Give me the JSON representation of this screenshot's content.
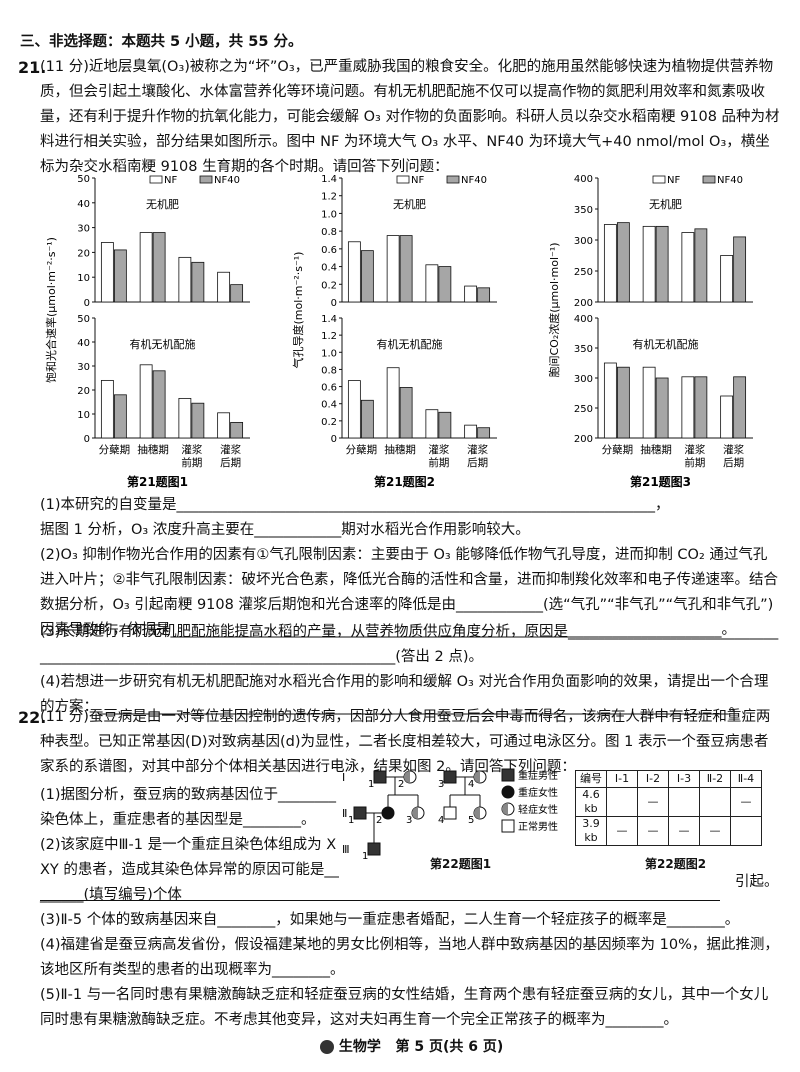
{
  "section_heading": "三、非选择题：本题共 5 小题，共 55 分。",
  "q21": {
    "number": "21.",
    "intro": "(11 分)近地层臭氧(O₃)被称之为“坏”O₃，已严重威胁我国的粮食安全。化肥的施用虽然能够快速为植物提供营养物质，但会引起土壤酸化、水体富营养化等环境问题。有机无机肥配施不仅可以提高作物的氮肥利用效率和氮素吸收量，还有利于提升作物的抗氧化能力，可能会缓解 O₃ 对作物的负面影响。科研人员以杂交水稻南粳 9108 品种为材料进行相关实验，部分结果如图所示。图中 NF 为环境大气 O₃ 水平、NF40 为环境大气+40 nmol/mol O₃，横坐标为杂交水稻南粳 9108 生育期的各个时期。请回答下列问题：",
    "questions": [
      "(1)本研究的自变量是__________________________________________________________________，",
      "据图 1 分析，O₃ 浓度升高主要在____________期对水稻光合作用影响较大。",
      "(2)O₃ 抑制作物光合作用的因素有①气孔限制因素：主要由于 O₃ 能够降低作物气孔导度，进而抑制 CO₂ 通过气孔进入叶片；②非气孔限制因素：破坏光合色素，降低光合酶的活性和含量，进而抑制羧化效率和电子传递速率。结合数据分析，O₃ 引起南粳 9108 灌浆后期饱和光合速率的降低是由____________(选“气孔”“非气孔”“气孔和非气孔”)因素导致的，依据是____________________________________________________________________________。",
      "(3)长期进行有机无机肥配施能提高水稻的产量，从营养物质供应角度分析，原因是______________________________________________________________________________(答出 2 点)。",
      "(4)若想进一步研究有机无机肥配施对水稻光合作用的影响和缓解 O₃ 对光合作用负面影响的效果，请提出一个合理的方案：_______________________________________________________________________________________。"
    ]
  },
  "chart_data": [
    {
      "type": "bar",
      "caption": "第21题图1",
      "y_label": "饱和光合速率(μmol·m⁻²·s⁻¹)",
      "ylim": [
        0,
        50
      ],
      "yticks": [
        0,
        10,
        20,
        30,
        40,
        50
      ],
      "categories": [
        "分蘖期",
        "抽穗期",
        "灌浆前期",
        "灌浆后期"
      ],
      "legend": [
        {
          "name": "NF",
          "color": "#ffffff"
        },
        {
          "name": "NF40",
          "color": "#a6a6a6"
        }
      ],
      "panels": [
        {
          "title": "无机肥",
          "series": [
            {
              "values": [
                24,
                28,
                18,
                12
              ]
            },
            {
              "values": [
                21,
                28,
                16,
                7
              ]
            }
          ]
        },
        {
          "title": "有机无机配施",
          "series": [
            {
              "values": [
                24,
                30.5,
                16.5,
                10.5
              ]
            },
            {
              "values": [
                18,
                28,
                14.5,
                6.5
              ]
            }
          ]
        }
      ]
    },
    {
      "type": "bar",
      "caption": "第21题图2",
      "y_label": "气孔导度(mol·m⁻²·s⁻¹)",
      "ylim": [
        0,
        1.4
      ],
      "yticks": [
        0,
        0.2,
        0.4,
        0.6,
        0.8,
        {
          "value": 1,
          "label": "1.0"
        },
        1.2,
        1.4
      ],
      "categories": [
        "分蘖期",
        "抽穗期",
        "灌浆前期",
        "灌浆后期"
      ],
      "legend": [
        {
          "name": "NF",
          "color": "#ffffff"
        },
        {
          "name": "NF40",
          "color": "#a6a6a6"
        }
      ],
      "panels": [
        {
          "title": "无机肥",
          "series": [
            {
              "values": [
                0.68,
                0.75,
                0.42,
                0.18
              ]
            },
            {
              "values": [
                0.58,
                0.75,
                0.4,
                0.16
              ]
            }
          ]
        },
        {
          "title": "有机无机配施",
          "series": [
            {
              "values": [
                0.67,
                0.82,
                0.33,
                0.15
              ]
            },
            {
              "values": [
                0.44,
                0.59,
                0.3,
                0.12
              ]
            }
          ]
        }
      ]
    },
    {
      "type": "bar",
      "caption": "第21题图3",
      "y_label": "胞间CO₂浓度(μmol·mol⁻¹)",
      "ylim": [
        200,
        400
      ],
      "yticks": [
        200,
        250,
        300,
        350,
        400
      ],
      "categories": [
        "分蘖期",
        "抽穗期",
        "灌浆前期",
        "灌浆后期"
      ],
      "legend": [
        {
          "name": "NF",
          "color": "#ffffff"
        },
        {
          "name": "NF40",
          "color": "#a6a6a6"
        }
      ],
      "panels": [
        {
          "title": "无机肥",
          "series": [
            {
              "values": [
                325,
                322,
                312,
                275
              ]
            },
            {
              "values": [
                328,
                322,
                318,
                305
              ]
            }
          ]
        },
        {
          "title": "有机无机配施",
          "series": [
            {
              "values": [
                325,
                318,
                302,
                270
              ]
            },
            {
              "values": [
                318,
                300,
                302,
                302
              ]
            }
          ]
        }
      ]
    }
  ],
  "q22": {
    "number": "22.",
    "intro": "(11 分)蚕豆病是由一对等位基因控制的遗传病，因部分人食用蚕豆后会中毒而得名，该病在人群中有轻症和重症两种表型。已知正常基因(D)对致病基因(d)为显性，二者长度相差较大，可通过电泳区分。图 1 表示一个蚕豆病患者家系的系谱图，对其中部分个体相关基因进行电泳，结果如图 2。请回答下列问题：",
    "q1": "(1)据图分析，蚕豆病的致病基因位于________染色体上，重症患者的基因型是________。",
    "q2": [
      "(2)该家庭中Ⅲ-1 是一个重症且染色体组成为 XXY 的患者，造成其染色体异常的原因可能是________(填写编号)个体",
      "引起。"
    ],
    "q3": "(3)Ⅱ-5 个体的致病基因来自________，如果她与一重症患者婚配，二人生育一个轻症孩子的概率是________。",
    "q4": "(4)福建省是蚕豆病高发省份，假设福建某地的男女比例相等，当地人群中致病基因的基因频率为 10%，据此推测，该地区所有类型的患者的出现概率为________。",
    "q5": "(5)Ⅱ-1 与一名同时患有果糖激酶缺乏症和轻症蚕豆病的女性结婚，生育两个患有轻症蚕豆病的女儿，其中一个女儿同时患有果糖激酶缺乏症。不考虑其他变异，这对夫妇再生育一个完全正常孩子的概率为________。",
    "pedigree": {
      "caption": "第22题图1",
      "generations": [
        {
          "label": "Ⅰ",
          "members": [
            "1",
            "2",
            "3",
            "4"
          ]
        },
        {
          "label": "Ⅱ",
          "members": [
            "1",
            "2",
            "3",
            "4",
            "5"
          ]
        },
        {
          "label": "Ⅲ",
          "members": [
            "1"
          ]
        }
      ],
      "legend": [
        "重症男性",
        "重症女性",
        "轻症女性",
        "正常男性"
      ]
    },
    "table": {
      "caption": "第22题图2",
      "header": [
        "编号",
        "Ⅰ-1",
        "Ⅰ-2",
        "Ⅰ-3",
        "Ⅱ-2",
        "Ⅱ-4"
      ],
      "rows": [
        [
          "4.6 kb",
          null,
          "—",
          null,
          null,
          "—"
        ],
        [
          "3.9 kb",
          "—",
          "—",
          "—",
          "—",
          null
        ]
      ]
    }
  },
  "footer": {
    "subject": "生物学",
    "page": "第 5 页(共 6 页)"
  }
}
